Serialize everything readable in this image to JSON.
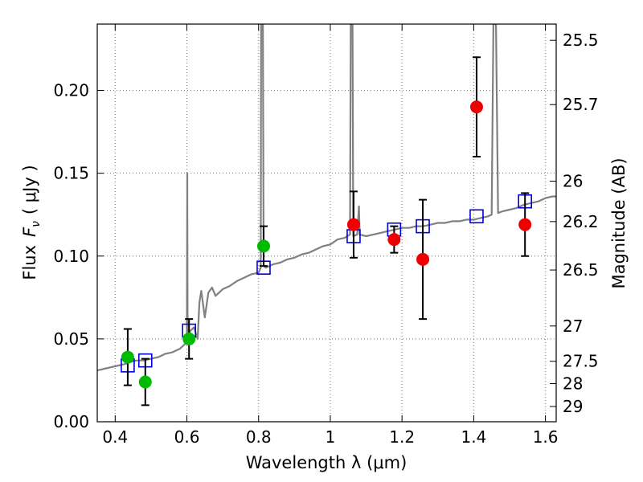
{
  "chart_data": {
    "type": "scatter",
    "title": "",
    "xlabel": "Wavelength  λ (μm)",
    "ylabel_prefix": "Flux",
    "ylabel_symbol": "F",
    "ylabel_subscript": "ν",
    "ylabel_units": "( μJy )",
    "y2label": "Magnitude (AB)",
    "xlim": [
      0.35,
      1.63
    ],
    "ylim": [
      0.0,
      0.24
    ],
    "grid": true,
    "xticks": [
      0.4,
      0.6,
      0.8,
      1.0,
      1.2,
      1.4,
      1.6
    ],
    "xtick_labels": [
      "0.4",
      "0.6",
      "0.8",
      "1",
      "1.2",
      "1.4",
      "1.6"
    ],
    "yticks": [
      0.0,
      0.05,
      0.1,
      0.15,
      0.2
    ],
    "ytick_labels": [
      "0.00",
      "0.05",
      "0.10",
      "0.15",
      "0.20"
    ],
    "y2ticks": [
      {
        "label": "25.5",
        "flux": 0.2302
      },
      {
        "label": "25.7",
        "flux": 0.1914
      },
      {
        "label": "26",
        "flux": 0.1452
      },
      {
        "label": "26.2",
        "flux": 0.1208
      },
      {
        "label": "26.5",
        "flux": 0.0916
      },
      {
        "label": "27",
        "flux": 0.0578
      },
      {
        "label": "27.5",
        "flux": 0.0365
      },
      {
        "label": "28",
        "flux": 0.023
      },
      {
        "label": "29",
        "flux": 0.0092
      }
    ],
    "colors": {
      "model": "#808080",
      "green": "#00bb00",
      "red": "#ee0000",
      "box": "#0000dd",
      "error": "#000000",
      "grid": "#777777"
    },
    "model_spectrum": [
      [
        0.35,
        0.031
      ],
      [
        0.37,
        0.032
      ],
      [
        0.39,
        0.033
      ],
      [
        0.41,
        0.034
      ],
      [
        0.43,
        0.035
      ],
      [
        0.44,
        0.036
      ],
      [
        0.46,
        0.037
      ],
      [
        0.48,
        0.037
      ],
      [
        0.5,
        0.038
      ],
      [
        0.52,
        0.039
      ],
      [
        0.54,
        0.041
      ],
      [
        0.56,
        0.042
      ],
      [
        0.58,
        0.044
      ],
      [
        0.595,
        0.047
      ],
      [
        0.6,
        0.051
      ],
      [
        0.601,
        0.15
      ],
      [
        0.602,
        0.052
      ],
      [
        0.61,
        0.055
      ],
      [
        0.62,
        0.057
      ],
      [
        0.63,
        0.05
      ],
      [
        0.635,
        0.072
      ],
      [
        0.64,
        0.079
      ],
      [
        0.65,
        0.063
      ],
      [
        0.66,
        0.078
      ],
      [
        0.67,
        0.081
      ],
      [
        0.68,
        0.076
      ],
      [
        0.7,
        0.08
      ],
      [
        0.72,
        0.082
      ],
      [
        0.74,
        0.085
      ],
      [
        0.76,
        0.087
      ],
      [
        0.78,
        0.089
      ],
      [
        0.8,
        0.09
      ],
      [
        0.806,
        0.093
      ],
      [
        0.807,
        0.24
      ],
      [
        0.81,
        0.24
      ],
      [
        0.812,
        0.24
      ],
      [
        0.814,
        0.094
      ],
      [
        0.82,
        0.093
      ],
      [
        0.84,
        0.095
      ],
      [
        0.86,
        0.096
      ],
      [
        0.88,
        0.098
      ],
      [
        0.9,
        0.099
      ],
      [
        0.92,
        0.101
      ],
      [
        0.94,
        0.102
      ],
      [
        0.96,
        0.104
      ],
      [
        0.98,
        0.106
      ],
      [
        1.0,
        0.107
      ],
      [
        1.02,
        0.11
      ],
      [
        1.04,
        0.111
      ],
      [
        1.055,
        0.113
      ],
      [
        1.057,
        0.24
      ],
      [
        1.062,
        0.24
      ],
      [
        1.064,
        0.112
      ],
      [
        1.075,
        0.113
      ],
      [
        1.08,
        0.13
      ],
      [
        1.082,
        0.113
      ],
      [
        1.1,
        0.112
      ],
      [
        1.12,
        0.113
      ],
      [
        1.14,
        0.114
      ],
      [
        1.16,
        0.115
      ],
      [
        1.18,
        0.116
      ],
      [
        1.2,
        0.117
      ],
      [
        1.22,
        0.117
      ],
      [
        1.24,
        0.118
      ],
      [
        1.26,
        0.118
      ],
      [
        1.28,
        0.119
      ],
      [
        1.3,
        0.12
      ],
      [
        1.32,
        0.12
      ],
      [
        1.34,
        0.121
      ],
      [
        1.36,
        0.121
      ],
      [
        1.38,
        0.122
      ],
      [
        1.4,
        0.122
      ],
      [
        1.42,
        0.123
      ],
      [
        1.44,
        0.124
      ],
      [
        1.45,
        0.125
      ],
      [
        1.455,
        0.24
      ],
      [
        1.462,
        0.24
      ],
      [
        1.468,
        0.126
      ],
      [
        1.48,
        0.127
      ],
      [
        1.5,
        0.128
      ],
      [
        1.52,
        0.129
      ],
      [
        1.54,
        0.131
      ],
      [
        1.56,
        0.132
      ],
      [
        1.58,
        0.133
      ],
      [
        1.6,
        0.135
      ],
      [
        1.62,
        0.136
      ],
      [
        1.63,
        0.136
      ]
    ],
    "points_green": [
      {
        "x": 0.435,
        "y": 0.039,
        "err": 0.017
      },
      {
        "x": 0.484,
        "y": 0.024,
        "err": 0.014
      },
      {
        "x": 0.606,
        "y": 0.05,
        "err": 0.012
      },
      {
        "x": 0.814,
        "y": 0.106,
        "err": 0.012
      }
    ],
    "points_red": [
      {
        "x": 1.065,
        "y": 0.119,
        "err": 0.02
      },
      {
        "x": 1.178,
        "y": 0.11,
        "err": 0.008
      },
      {
        "x": 1.258,
        "y": 0.098,
        "err": 0.036
      },
      {
        "x": 1.408,
        "y": 0.19,
        "err": 0.03
      },
      {
        "x": 1.543,
        "y": 0.119,
        "err": 0.019
      }
    ],
    "model_boxes": [
      {
        "x": 0.435,
        "y": 0.034
      },
      {
        "x": 0.484,
        "y": 0.037
      },
      {
        "x": 0.606,
        "y": 0.055
      },
      {
        "x": 0.814,
        "y": 0.093
      },
      {
        "x": 1.065,
        "y": 0.112
      },
      {
        "x": 1.178,
        "y": 0.116
      },
      {
        "x": 1.258,
        "y": 0.118
      },
      {
        "x": 1.408,
        "y": 0.124
      },
      {
        "x": 1.543,
        "y": 0.133
      }
    ]
  }
}
